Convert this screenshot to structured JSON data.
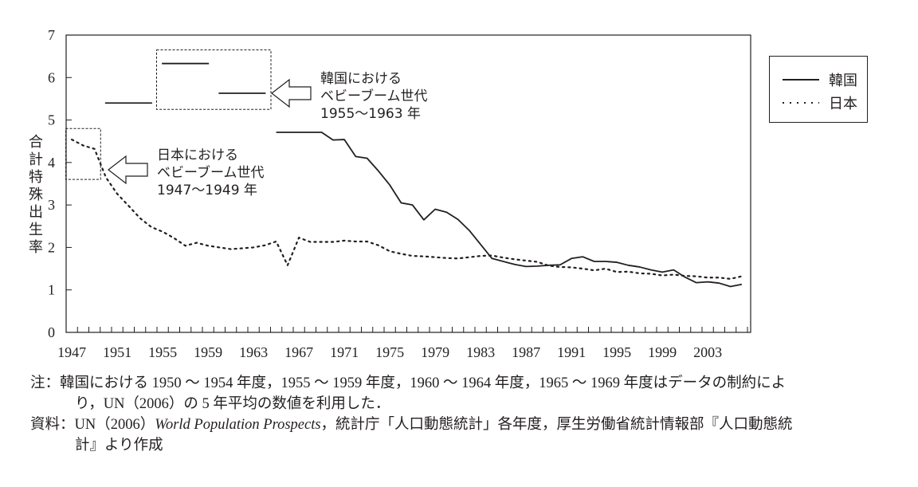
{
  "chart_data": {
    "type": "line",
    "title": "",
    "xlabel": "",
    "ylabel": "合計特殊出生率",
    "ylim": [
      0,
      7
    ],
    "xlim": [
      1947,
      2006
    ],
    "yticks": [
      "0",
      "1",
      "2",
      "3",
      "4",
      "5",
      "6",
      "7"
    ],
    "xticks": [
      "1947",
      "1951",
      "1955",
      "1959",
      "1963",
      "1967",
      "1971",
      "1975",
      "1979",
      "1983",
      "1987",
      "1991",
      "1995",
      "1999",
      "2003"
    ],
    "grid": false,
    "legend_position": "right",
    "series": [
      {
        "name": "韓国",
        "style": "solid",
        "color": "#231f20",
        "segments": [
          {
            "x": [
              1950,
              1954
            ],
            "y": [
              5.4,
              5.4
            ]
          },
          {
            "x": [
              1955,
              1959
            ],
            "y": [
              6.33,
              6.33
            ]
          },
          {
            "x": [
              1960,
              1964
            ],
            "y": [
              5.63,
              5.63
            ]
          },
          {
            "x": [
              1965,
              1966,
              1967,
              1968,
              1969,
              1970,
              1971,
              1972,
              1973,
              1974,
              1975,
              1976,
              1977,
              1978,
              1979,
              1980,
              1981,
              1982,
              1983,
              1984,
              1985,
              1986,
              1987,
              1988,
              1989,
              1990,
              1991,
              1992,
              1993,
              1994,
              1995,
              1996,
              1997,
              1998,
              1999,
              2000,
              2001,
              2002,
              2003,
              2004,
              2005,
              2006
            ],
            "y": [
              4.71,
              4.71,
              4.71,
              4.71,
              4.71,
              4.53,
              4.54,
              4.14,
              4.1,
              3.8,
              3.47,
              3.05,
              3.0,
              2.65,
              2.9,
              2.83,
              2.66,
              2.4,
              2.07,
              1.74,
              1.67,
              1.6,
              1.55,
              1.56,
              1.58,
              1.59,
              1.74,
              1.78,
              1.67,
              1.67,
              1.65,
              1.58,
              1.54,
              1.47,
              1.42,
              1.47,
              1.3,
              1.17,
              1.19,
              1.16,
              1.08,
              1.13
            ]
          }
        ]
      },
      {
        "name": "日本",
        "style": "dotted",
        "color": "#231f20",
        "segments": [
          {
            "x": [
              1947,
              1948,
              1949,
              1950,
              1951,
              1952,
              1953,
              1954,
              1955,
              1956,
              1957,
              1958,
              1959,
              1960,
              1961,
              1962,
              1963,
              1964,
              1965,
              1966,
              1967,
              1968,
              1969,
              1970,
              1971,
              1972,
              1973,
              1974,
              1975,
              1976,
              1977,
              1978,
              1979,
              1980,
              1981,
              1982,
              1983,
              1984,
              1985,
              1986,
              1987,
              1988,
              1989,
              1990,
              1991,
              1992,
              1993,
              1994,
              1995,
              1996,
              1997,
              1998,
              1999,
              2000,
              2001,
              2002,
              2003,
              2004,
              2005,
              2006
            ],
            "y": [
              4.54,
              4.4,
              4.32,
              3.65,
              3.26,
              2.98,
              2.69,
              2.48,
              2.37,
              2.22,
              2.04,
              2.11,
              2.04,
              2.0,
              1.96,
              1.98,
              2.0,
              2.05,
              2.14,
              1.58,
              2.23,
              2.13,
              2.13,
              2.13,
              2.16,
              2.14,
              2.14,
              2.05,
              1.91,
              1.85,
              1.8,
              1.79,
              1.77,
              1.75,
              1.74,
              1.77,
              1.8,
              1.81,
              1.76,
              1.72,
              1.69,
              1.66,
              1.57,
              1.54,
              1.53,
              1.5,
              1.46,
              1.5,
              1.42,
              1.43,
              1.39,
              1.38,
              1.34,
              1.36,
              1.33,
              1.32,
              1.29,
              1.29,
              1.26,
              1.32
            ]
          }
        ]
      }
    ],
    "annotations": [
      {
        "name": "korea-baby-boom",
        "lines": [
          "韓国における",
          "ベビーブーム世代",
          "1955〜1963 年"
        ],
        "highlight_years": [
          1955,
          1964
        ],
        "highlight_y": [
          5.25,
          6.65
        ]
      },
      {
        "name": "japan-baby-boom",
        "lines": [
          "日本における",
          "ベビーブーム世代",
          "1947〜1949 年"
        ],
        "highlight_years": [
          1947,
          1949
        ],
        "highlight_y": [
          3.6,
          4.8
        ]
      }
    ]
  },
  "legend": {
    "korea": "韓国",
    "japan": "日本"
  },
  "notes": {
    "note_label": "注：",
    "note_line1": "韓国における 1950 〜 1954 年度，1955 〜 1959 年度，1960 〜 1964 年度，1965 〜 1969 年度はデータの制約によ",
    "note_line2": "り，UN（2006）の 5 年平均の数値を利用した．",
    "source_label": "資料：",
    "source_prefix": "UN（2006）",
    "source_italic": "World Population Prospects",
    "source_rest": "，統計庁「人口動態統計」各年度，厚生労働省統計情報部『人口動態統",
    "source_line2": "計』より作成"
  }
}
